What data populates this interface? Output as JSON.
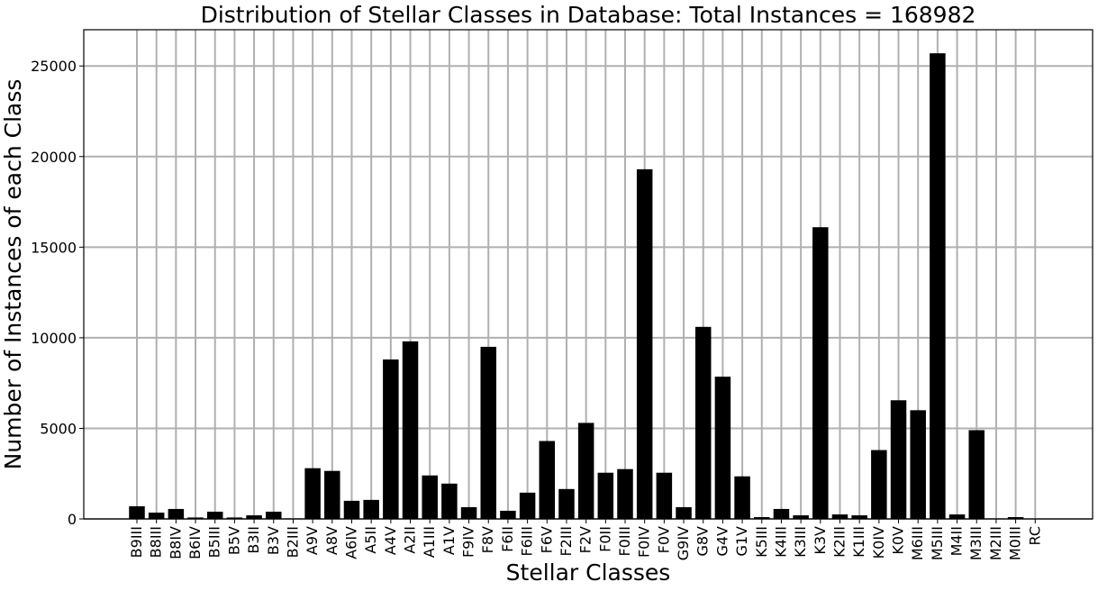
{
  "chart_data": {
    "type": "bar",
    "title": "Distribution of Stellar Classes in Database: Total Instances = 168982",
    "xlabel": "Stellar Classes",
    "ylabel": "Number of Instances of each Class",
    "ylim": [
      0,
      27000
    ],
    "yticks": [
      0,
      5000,
      10000,
      15000,
      20000,
      25000
    ],
    "grid": true,
    "bar_color": "#000000",
    "grid_color": "#b0b0b0",
    "categories": [
      "B9III",
      "B8III",
      "B8IV",
      "B6IV",
      "B5III",
      "B5V",
      "B3II",
      "B3V",
      "B2III",
      "A9V",
      "A8V",
      "A6IV",
      "A5II",
      "A4V",
      "A2II",
      "A1III",
      "A1V",
      "F9IV",
      "F8V",
      "F6II",
      "F6III",
      "F6V",
      "F2III",
      "F2V",
      "F0II",
      "F0III",
      "F0IV",
      "F0V",
      "G9IV",
      "G8V",
      "G4V",
      "G1V",
      "K5III",
      "K4III",
      "K3III",
      "K3V",
      "K2III",
      "K1III",
      "K0IV",
      "K0V",
      "M6III",
      "M5III",
      "M4II",
      "M3III",
      "M2III",
      "M0III",
      "RC"
    ],
    "values": [
      700,
      350,
      550,
      80,
      400,
      80,
      200,
      400,
      30,
      2800,
      2650,
      1000,
      1050,
      8800,
      9800,
      2400,
      1950,
      650,
      9500,
      450,
      1450,
      4300,
      1650,
      5300,
      2550,
      2750,
      19300,
      2550,
      650,
      10600,
      7850,
      2350,
      100,
      550,
      200,
      16100,
      250,
      200,
      3800,
      6550,
      6000,
      25700,
      250,
      4900,
      30,
      100,
      20
    ]
  }
}
